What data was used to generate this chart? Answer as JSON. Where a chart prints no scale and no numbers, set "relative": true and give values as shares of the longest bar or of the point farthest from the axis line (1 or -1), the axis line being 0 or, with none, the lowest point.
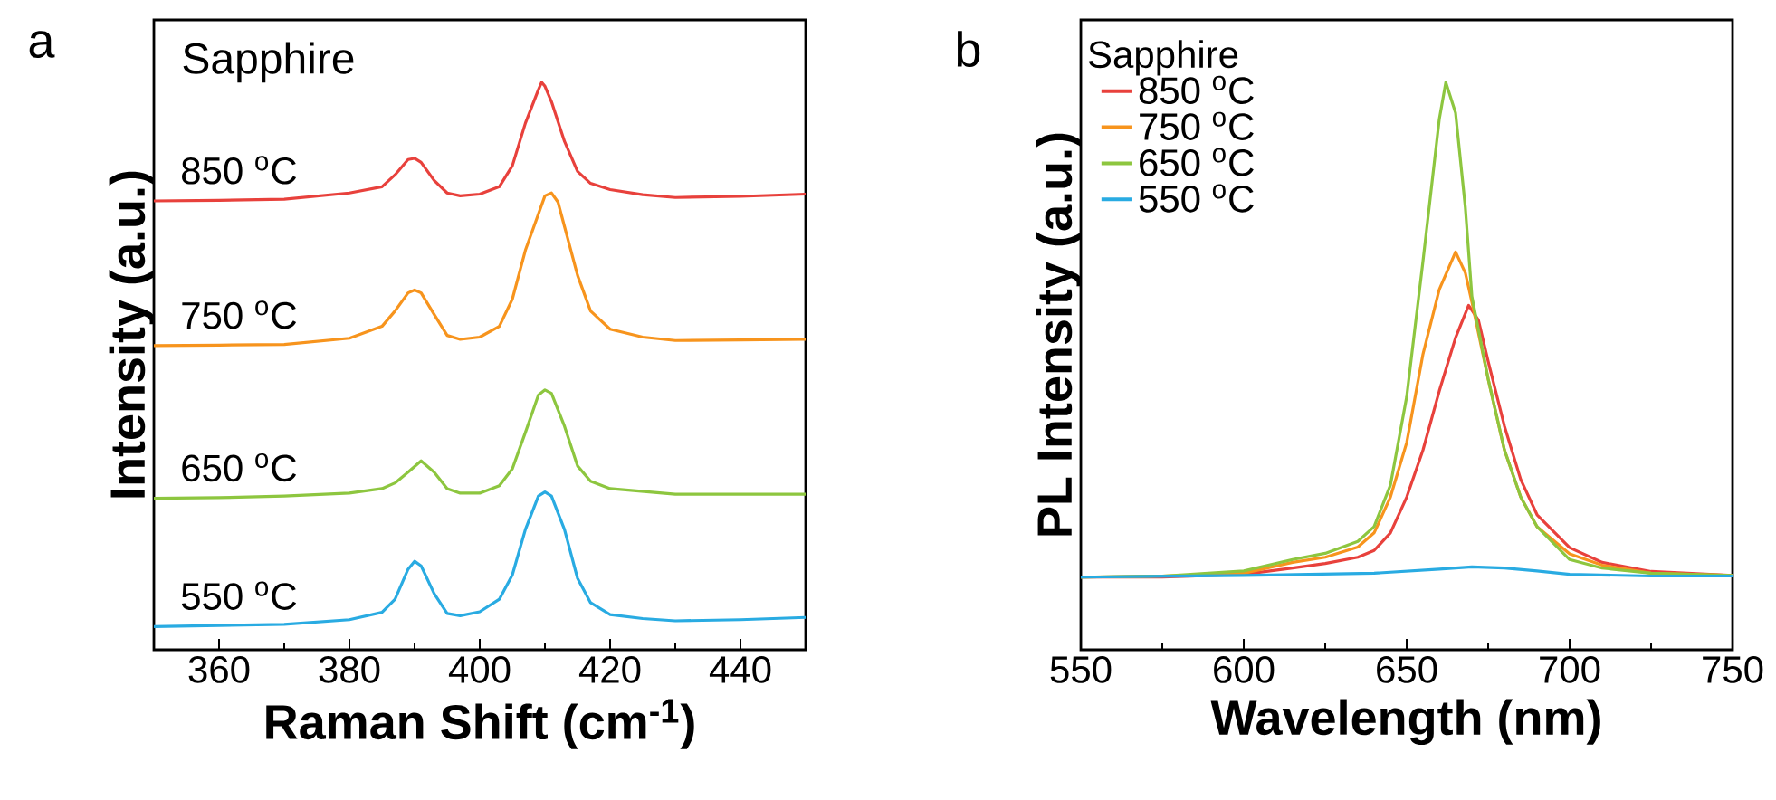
{
  "chart_data": [
    {
      "type": "line",
      "relative": true,
      "annotations": [
        "a",
        "Sapphire"
      ],
      "xlabel": "Raman Shift (cm$^{-1}$)",
      "ylabel": "Intensity (a.u.)",
      "xlim": [
        350,
        450
      ],
      "xticks": [
        360,
        380,
        400,
        420,
        440
      ],
      "series": [
        {
          "name": "850 $^{o}$C",
          "color": "#e8413c",
          "x": [
            350,
            360,
            370,
            380,
            385,
            387,
            389,
            390,
            391,
            393,
            395,
            397,
            400,
            403,
            405,
            407,
            409,
            409.5,
            410,
            411,
            413,
            415,
            417,
            420,
            425,
            430,
            440,
            450
          ],
          "values": [
            0.791,
            0.792,
            0.794,
            0.805,
            0.816,
            0.837,
            0.864,
            0.866,
            0.859,
            0.827,
            0.805,
            0.8,
            0.803,
            0.816,
            0.853,
            0.928,
            0.987,
            1.0,
            0.993,
            0.966,
            0.896,
            0.843,
            0.822,
            0.811,
            0.802,
            0.797,
            0.799,
            0.803
          ]
        },
        {
          "name": "750 $^{o}$C",
          "color": "#f7941d",
          "x": [
            350,
            360,
            370,
            380,
            385,
            387,
            389,
            390,
            391,
            393,
            395,
            397,
            400,
            403,
            405,
            407,
            409,
            410,
            411,
            412,
            413,
            415,
            417,
            420,
            425,
            430,
            440,
            450
          ],
          "values": [
            0.536,
            0.537,
            0.538,
            0.549,
            0.57,
            0.597,
            0.629,
            0.634,
            0.629,
            0.591,
            0.554,
            0.547,
            0.551,
            0.57,
            0.618,
            0.704,
            0.768,
            0.8,
            0.805,
            0.789,
            0.746,
            0.66,
            0.597,
            0.565,
            0.551,
            0.545,
            0.546,
            0.547
          ]
        },
        {
          "name": "650 $^{o}$C",
          "color": "#8dc63f",
          "x": [
            350,
            360,
            370,
            380,
            385,
            387,
            389,
            391,
            393,
            395,
            397,
            400,
            403,
            405,
            407,
            409,
            410,
            411,
            413,
            415,
            417,
            420,
            430,
            440,
            450
          ],
          "values": [
            0.267,
            0.268,
            0.271,
            0.276,
            0.284,
            0.294,
            0.313,
            0.333,
            0.313,
            0.284,
            0.276,
            0.276,
            0.289,
            0.319,
            0.383,
            0.449,
            0.458,
            0.452,
            0.394,
            0.324,
            0.297,
            0.284,
            0.274,
            0.274,
            0.274
          ]
        },
        {
          "name": "550 $^{o}$C",
          "color": "#29abe2",
          "x": [
            350,
            360,
            370,
            380,
            385,
            387,
            389,
            390,
            391,
            393,
            395,
            397,
            400,
            403,
            405,
            407,
            409,
            410,
            411,
            413,
            415,
            417,
            420,
            425,
            430,
            440,
            450
          ],
          "values": [
            0.041,
            0.043,
            0.045,
            0.053,
            0.066,
            0.089,
            0.142,
            0.156,
            0.148,
            0.099,
            0.064,
            0.06,
            0.067,
            0.089,
            0.132,
            0.212,
            0.271,
            0.278,
            0.271,
            0.212,
            0.126,
            0.083,
            0.062,
            0.055,
            0.051,
            0.053,
            0.057
          ]
        }
      ]
    },
    {
      "type": "line",
      "relative": true,
      "annotations": [
        "b"
      ],
      "legend": "top left",
      "legend_title": "Sapphire",
      "xlabel": "Wavelength (nm)",
      "ylabel": "PL Intensity (a.u.)",
      "xlim": [
        550,
        750
      ],
      "xticks": [
        550,
        600,
        650,
        700,
        750
      ],
      "series": [
        {
          "name": "850 $^{o}$C",
          "color": "#e8413c",
          "x": [
            550,
            575,
            600,
            615,
            625,
            635,
            640,
            645,
            650,
            655,
            660,
            665,
            669,
            672,
            675,
            680,
            685,
            690,
            700,
            710,
            725,
            750
          ],
          "values": [
            0.128,
            0.128,
            0.133,
            0.144,
            0.152,
            0.163,
            0.175,
            0.206,
            0.269,
            0.352,
            0.456,
            0.55,
            0.607,
            0.581,
            0.508,
            0.394,
            0.3,
            0.238,
            0.18,
            0.154,
            0.138,
            0.131
          ]
        },
        {
          "name": "750 $^{o}$C",
          "color": "#f7941d",
          "x": [
            550,
            575,
            600,
            615,
            625,
            635,
            640,
            645,
            650,
            655,
            660,
            665,
            668,
            670,
            675,
            680,
            685,
            690,
            700,
            710,
            725,
            750
          ],
          "values": [
            0.128,
            0.13,
            0.135,
            0.154,
            0.163,
            0.181,
            0.206,
            0.269,
            0.365,
            0.521,
            0.635,
            0.701,
            0.664,
            0.613,
            0.477,
            0.352,
            0.269,
            0.217,
            0.169,
            0.149,
            0.135,
            0.131
          ]
        },
        {
          "name": "650 $^{o}$C",
          "color": "#8dc63f",
          "x": [
            550,
            575,
            600,
            615,
            625,
            635,
            640,
            645,
            650,
            655,
            660,
            662,
            665,
            668,
            670,
            675,
            680,
            685,
            690,
            700,
            710,
            725,
            750
          ],
          "values": [
            0.128,
            0.13,
            0.139,
            0.159,
            0.17,
            0.191,
            0.217,
            0.29,
            0.446,
            0.685,
            0.935,
            1.0,
            0.946,
            0.779,
            0.623,
            0.477,
            0.352,
            0.269,
            0.217,
            0.159,
            0.144,
            0.135,
            0.131
          ]
        },
        {
          "name": "550 $^{o}$C",
          "color": "#29abe2",
          "x": [
            550,
            600,
            640,
            660,
            670,
            680,
            690,
            700,
            725,
            750
          ],
          "values": [
            0.128,
            0.131,
            0.135,
            0.142,
            0.146,
            0.144,
            0.139,
            0.133,
            0.13,
            0.13
          ]
        }
      ]
    }
  ]
}
